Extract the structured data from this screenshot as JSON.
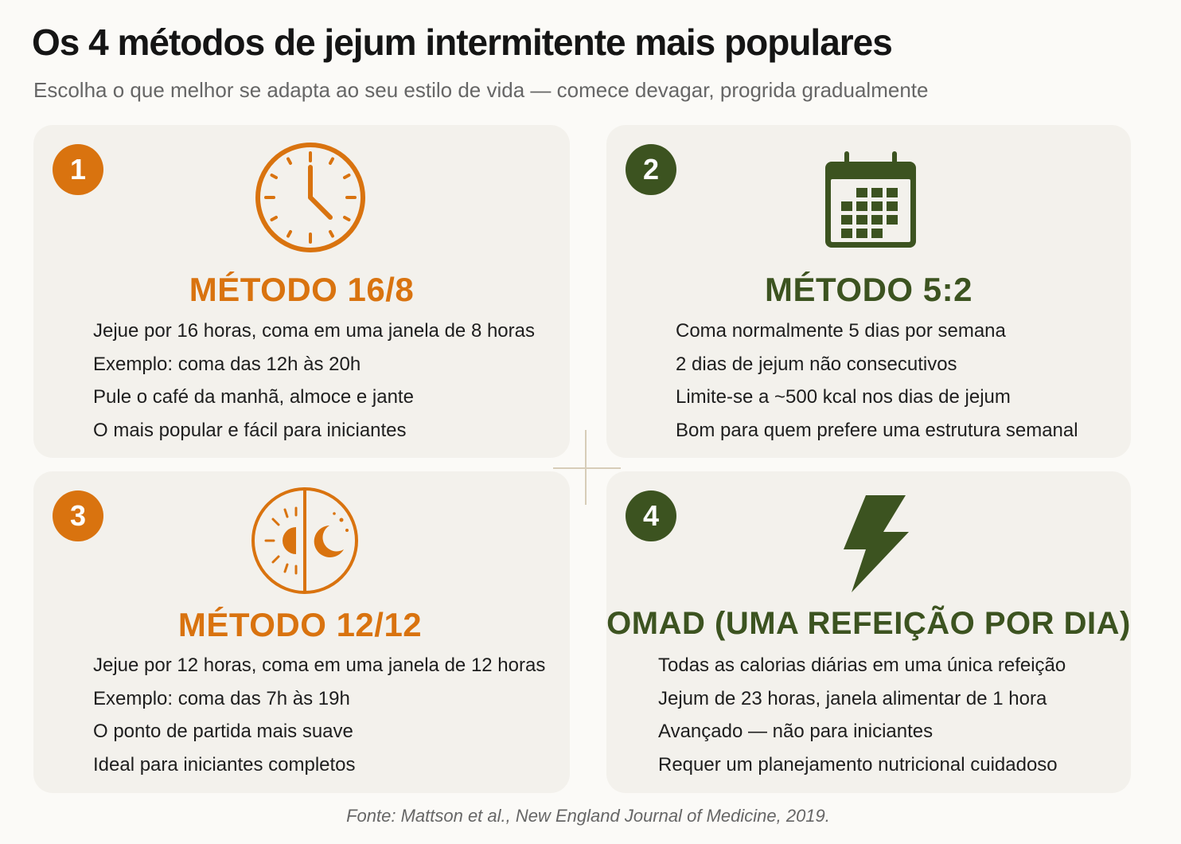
{
  "header": {
    "title": "Os 4 métodos de jejum intermitente mais populares",
    "subtitle": "Escolha o que melhor se adapta ao seu estilo de vida — comece devagar, progrida gradualmente"
  },
  "colors": {
    "orange": "#d9730f",
    "green": "#3c5320",
    "card_background": "#f3f1ec",
    "page_background": "#fbfaf7"
  },
  "methods": [
    {
      "number": "1",
      "icon": "clock-icon",
      "title": "MÉTODO 16/8",
      "lines": [
        "Jejue por 16 horas, coma em uma janela de 8 horas",
        "Exemplo: coma das 12h às 20h",
        "Pule o café da manhã, almoce e jante",
        "O mais popular e fácil para iniciantes"
      ]
    },
    {
      "number": "2",
      "icon": "calendar-icon",
      "title": "MÉTODO 5:2",
      "lines": [
        "Coma normalmente 5 dias por semana",
        "2 dias de jejum não consecutivos",
        "Limite-se a ~500 kcal nos dias de jejum",
        "Bom para quem prefere uma estrutura semanal"
      ]
    },
    {
      "number": "3",
      "icon": "sun-moon-icon",
      "title": "MÉTODO 12/12",
      "lines": [
        "Jejue por 12 horas, coma em uma janela de 12 horas",
        "Exemplo: coma das 7h às 19h",
        "O ponto de partida mais suave",
        "Ideal para iniciantes completos"
      ]
    },
    {
      "number": "4",
      "icon": "lightning-bolt-icon",
      "title": "OMAD (UMA REFEIÇÃO POR DIA)",
      "lines": [
        "Todas as calorias diárias em uma única refeição",
        "Jejum de 23 horas, janela alimentar de 1 hora",
        "Avançado — não para iniciantes",
        "Requer um planejamento nutricional cuidadoso"
      ]
    }
  ],
  "footer": {
    "source": "Fonte: Mattson et al., New England Journal of Medicine, 2019."
  }
}
